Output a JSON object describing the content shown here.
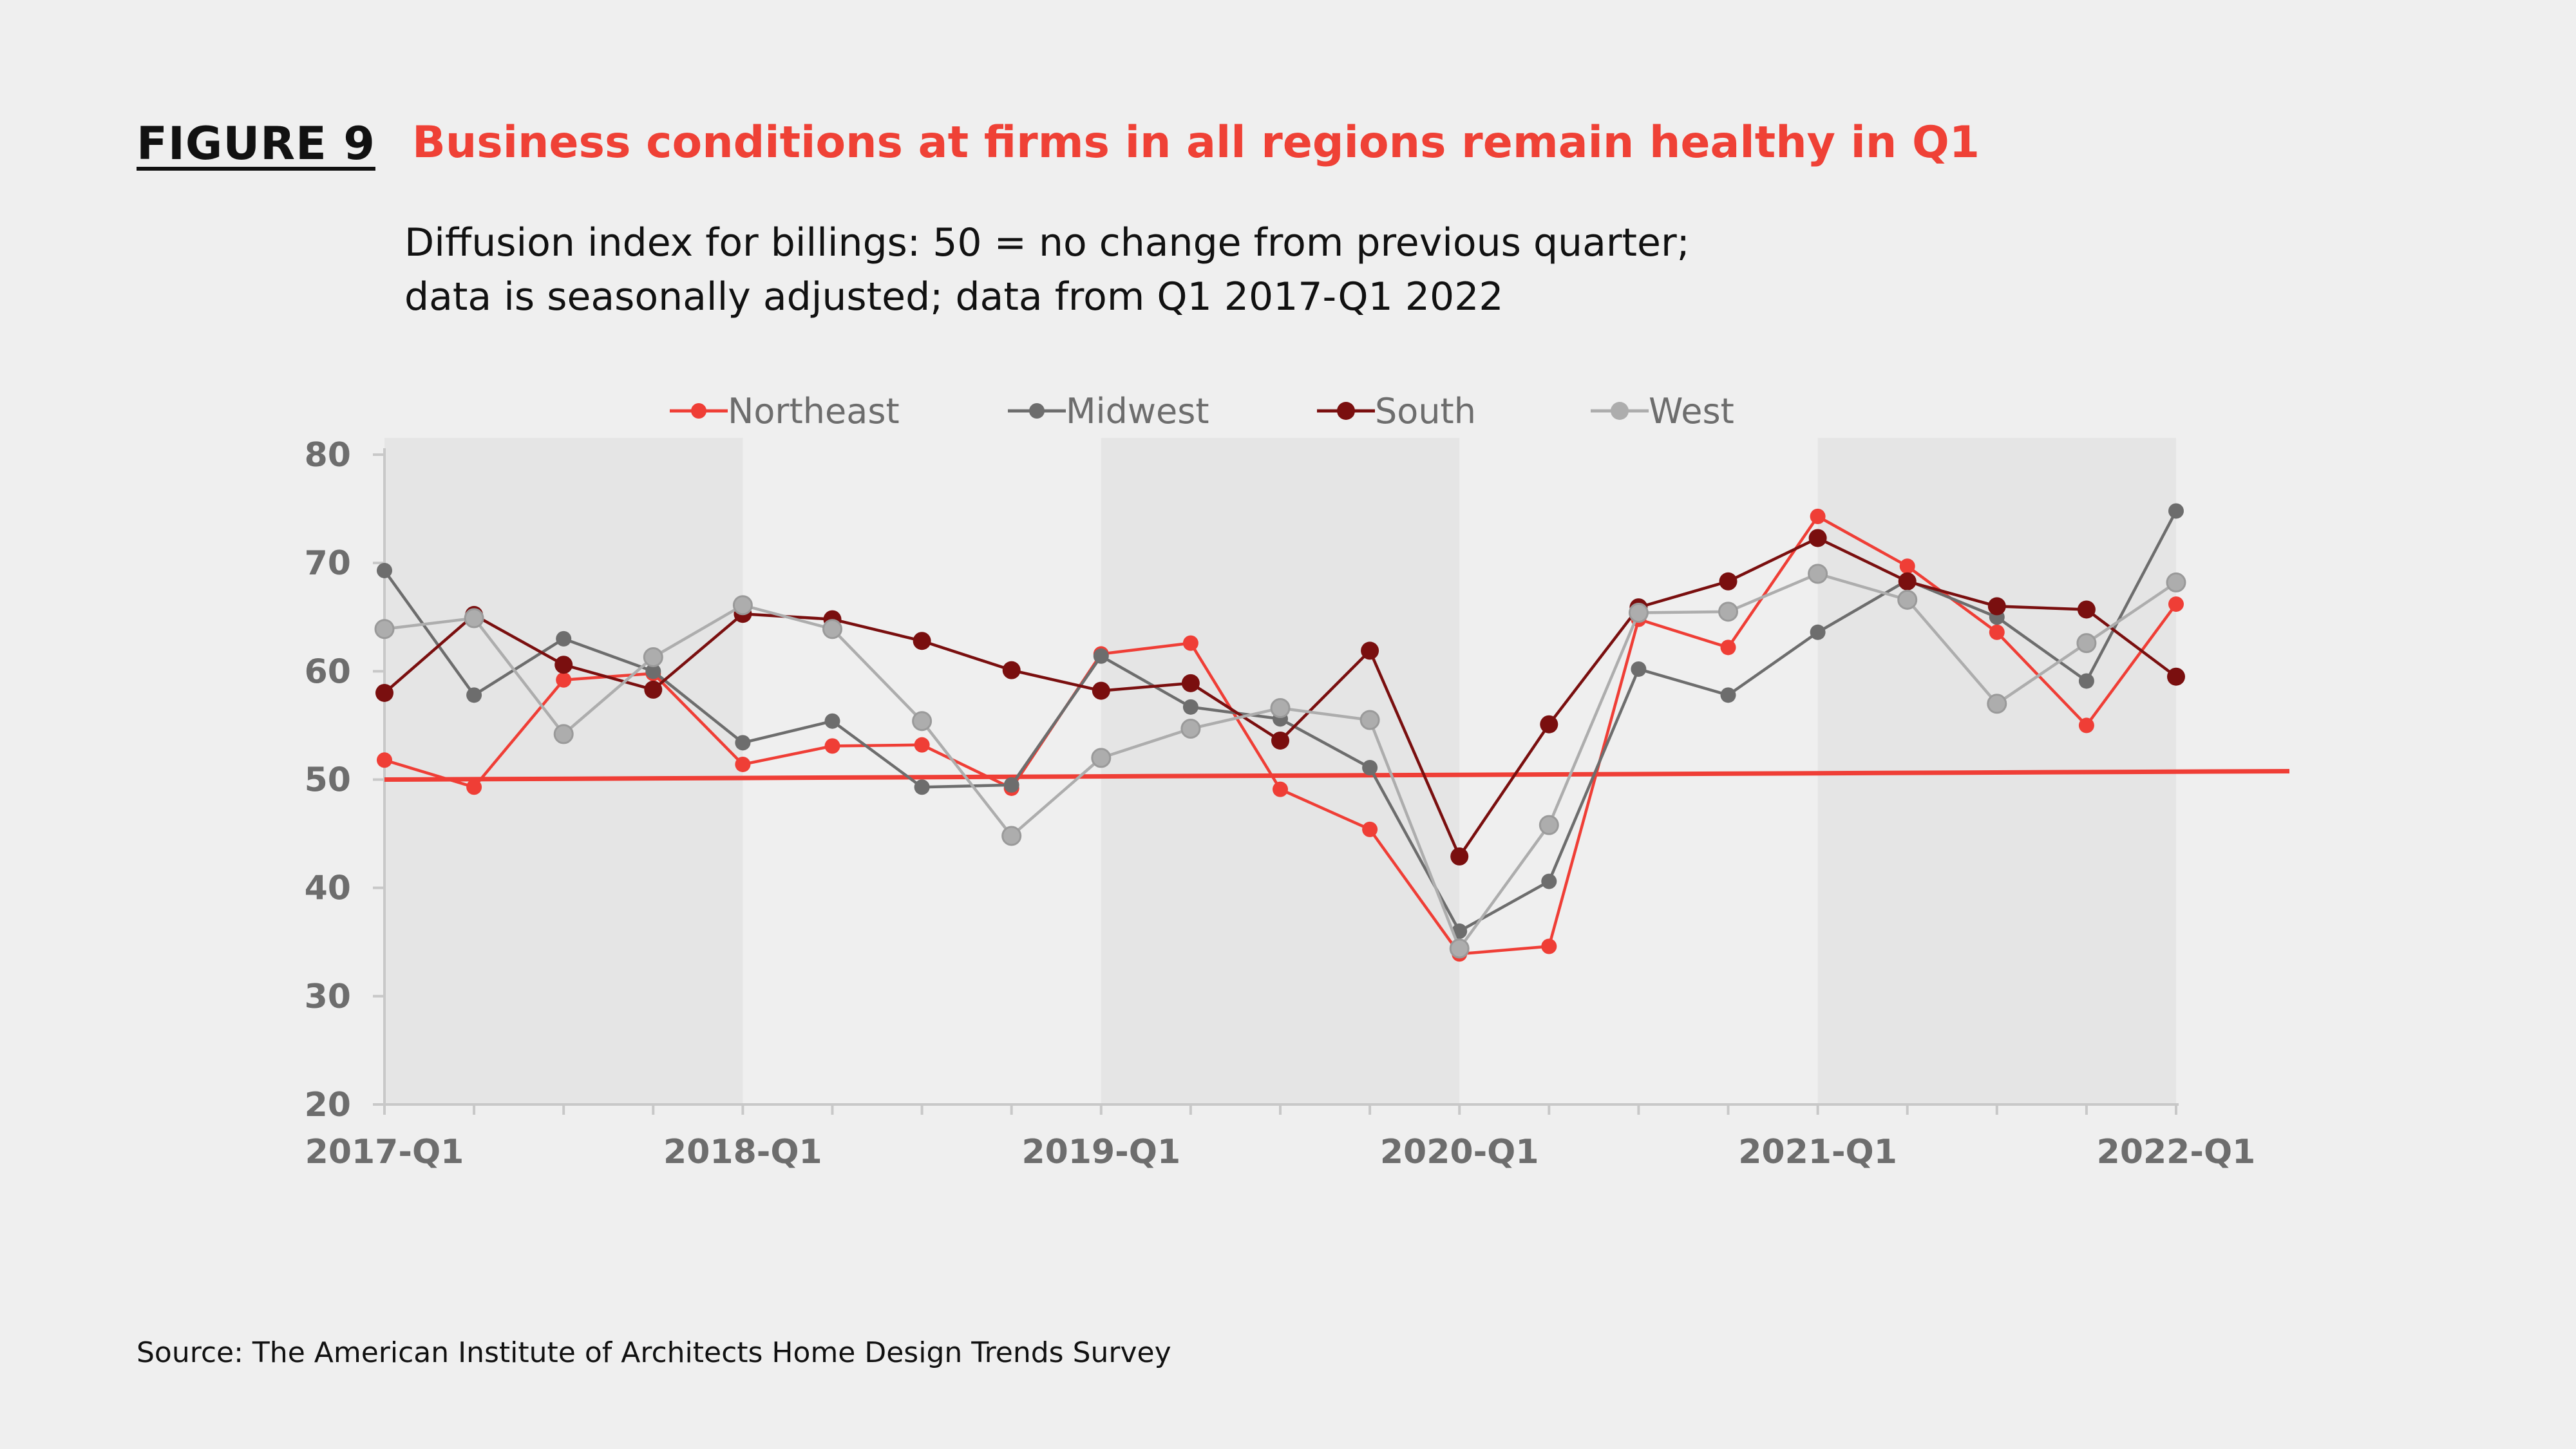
{
  "header": {
    "figure_label": "FIGURE 9",
    "title": "Business conditions at firms in all regions remain healthy in Q1",
    "subtitle_line1": "Diffusion index for billings: 50 = no change from previous quarter;",
    "subtitle_line2": "data is seasonally adjusted; data from Q1 2017-Q1 2022"
  },
  "source": "Source: The American Institute of Architects Home Design Trends Survey",
  "chart_data": {
    "type": "line",
    "x": [
      "2017-Q1",
      "2017-Q2",
      "2017-Q3",
      "2017-Q4",
      "2018-Q1",
      "2018-Q2",
      "2018-Q3",
      "2018-Q4",
      "2019-Q1",
      "2019-Q2",
      "2019-Q3",
      "2019-Q4",
      "2020-Q1",
      "2020-Q2",
      "2020-Q3",
      "2020-Q4",
      "2021-Q1",
      "2021-Q2",
      "2021-Q3",
      "2021-Q4",
      "2022-Q1"
    ],
    "x_tick_labels": [
      "2017-Q1",
      "2018-Q1",
      "2019-Q1",
      "2020-Q1",
      "2021-Q1",
      "2022-Q1"
    ],
    "ylim": [
      20,
      80
    ],
    "y_ticks": [
      20,
      30,
      40,
      50,
      60,
      70,
      80
    ],
    "reference_line": 50,
    "shaded_years": [
      "2017",
      "2019",
      "2021"
    ],
    "legend_position": "top",
    "series": [
      {
        "name": "Northeast",
        "color": "#ef3e36",
        "marker_size": "small",
        "values": [
          51.8,
          49.3,
          59.2,
          59.8,
          51.4,
          53.1,
          53.2,
          49.2,
          61.6,
          62.6,
          49.1,
          45.4,
          33.9,
          34.6,
          64.8,
          62.2,
          74.3,
          69.7,
          63.6,
          55.0,
          66.2
        ]
      },
      {
        "name": "Midwest",
        "color": "#6d6d6d",
        "marker_size": "small",
        "values": [
          69.3,
          57.8,
          63.0,
          60.0,
          53.4,
          55.4,
          49.3,
          49.5,
          61.4,
          56.7,
          55.6,
          51.1,
          36.0,
          40.6,
          60.2,
          57.8,
          63.6,
          68.4,
          65.0,
          59.1,
          74.8
        ]
      },
      {
        "name": "South",
        "color": "#7a0f0f",
        "marker_size": "large",
        "values": [
          58.0,
          65.2,
          60.6,
          58.3,
          65.3,
          64.8,
          62.8,
          60.1,
          58.2,
          58.9,
          53.6,
          61.9,
          42.9,
          55.1,
          65.9,
          68.3,
          72.3,
          68.3,
          66.0,
          65.7,
          59.5
        ]
      },
      {
        "name": "West",
        "color": "#adadad",
        "marker_size": "large",
        "values": [
          63.9,
          64.9,
          54.2,
          61.3,
          66.1,
          63.9,
          55.4,
          44.8,
          52.0,
          54.7,
          56.6,
          55.5,
          34.4,
          45.8,
          65.4,
          65.5,
          69.0,
          66.6,
          57.0,
          62.6,
          68.2
        ]
      }
    ]
  }
}
